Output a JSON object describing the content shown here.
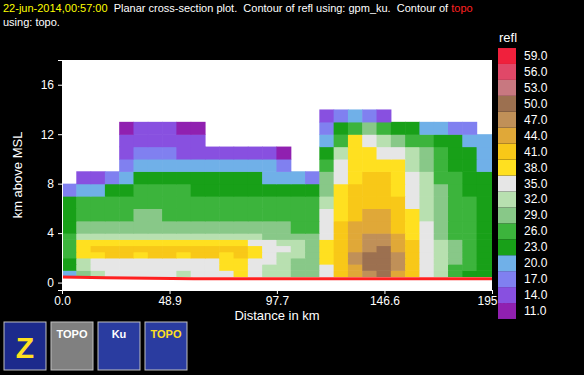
{
  "title_lines": [
    [
      {
        "text": "22-jun-2014,00:57:00",
        "color": "#ffff00"
      },
      {
        "text": "  Planar cross-section plot.  Contour of refl using: gpm_ku.  Contour of ",
        "color": "#ffffff"
      },
      {
        "text": "topo",
        "color": "#ff2020"
      }
    ],
    [
      {
        "text": "using: topo.",
        "color": "#ffffff"
      }
    ]
  ],
  "chart_data": {
    "type": "heatmap",
    "x_label": "Distance in km",
    "y_label": "km above MSL",
    "xlim": [
      0,
      195.5
    ],
    "ylim": [
      -0.6,
      18
    ],
    "xticks": [
      {
        "value": 0,
        "label": "0.0"
      },
      48.9,
      97.7,
      146.6,
      195.5
    ],
    "yticks": [
      0,
      4,
      8,
      12,
      16
    ],
    "x_edges": [
      0,
      6.5,
      13,
      19.5,
      26,
      32.5,
      39,
      45.5,
      52,
      58.5,
      65,
      71.5,
      78,
      84.5,
      91,
      97.5,
      104,
      110.5,
      117,
      123.5,
      130,
      136.5,
      143,
      149.5,
      156,
      162.5,
      169,
      175.5,
      182,
      188.5,
      195.5
    ],
    "y_edges": [
      0.5,
      1,
      1.5,
      2,
      2.5,
      3,
      3.5,
      4,
      5,
      6,
      7,
      8,
      9,
      10,
      11,
      12,
      13,
      14
    ],
    "cells": [
      [
        21,
        30,
        34,
        36,
        36,
        36,
        36,
        36,
        34,
        36,
        36,
        37,
        38,
        36,
        34,
        33,
        31,
        29,
        36,
        42,
        45,
        49,
        50,
        46,
        42,
        37,
        32,
        28,
        24,
        24
      ],
      [
        24,
        32,
        35,
        36,
        36,
        37,
        36,
        36,
        35,
        36,
        37,
        38,
        39,
        36,
        34,
        33,
        31,
        29,
        37,
        43,
        46,
        50,
        51,
        47,
        42,
        37,
        32,
        28,
        26,
        25
      ],
      [
        25,
        33,
        36,
        37,
        36,
        37,
        37,
        36,
        36,
        36,
        37,
        38,
        39,
        36,
        35,
        33,
        31,
        29,
        38,
        43,
        47,
        50,
        51,
        47,
        42,
        37,
        32,
        29,
        26,
        25
      ],
      [
        27,
        39,
        40,
        41,
        42,
        40,
        41,
        42,
        40,
        41,
        42,
        40,
        41,
        39,
        37,
        34,
        32,
        30,
        38,
        43,
        47,
        50,
        50,
        47,
        42,
        37,
        32,
        29,
        27,
        25
      ],
      [
        28,
        40,
        41,
        43,
        42,
        41,
        42,
        43,
        41,
        42,
        42,
        41,
        42,
        39,
        37,
        35,
        33,
        30,
        38,
        42,
        46,
        49,
        50,
        46,
        41,
        37,
        32,
        29,
        27,
        25
      ],
      [
        27,
        38,
        39,
        40,
        40,
        39,
        40,
        40,
        39,
        40,
        39,
        39,
        39,
        37,
        36,
        34,
        32,
        30,
        38,
        42,
        45,
        48,
        48,
        45,
        41,
        36,
        32,
        29,
        27,
        25
      ],
      [
        26,
        33,
        34,
        34,
        34,
        33,
        34,
        34,
        33,
        34,
        33,
        33,
        33,
        32,
        31,
        31,
        30,
        29,
        37,
        42,
        45,
        47,
        47,
        44,
        40,
        36,
        31,
        28,
        27,
        25
      ],
      [
        25,
        30,
        31,
        31,
        30,
        31,
        31,
        30,
        30,
        31,
        30,
        30,
        30,
        29,
        29,
        29,
        28,
        28,
        36,
        41,
        44,
        45,
        45,
        43,
        39,
        35,
        31,
        28,
        27,
        25
      ],
      [
        24,
        28,
        28,
        28,
        28,
        29,
        29,
        28,
        28,
        28,
        28,
        27,
        27,
        27,
        27,
        27,
        27,
        27,
        35,
        40,
        43,
        44,
        44,
        42,
        38,
        34,
        30,
        28,
        26,
        25
      ],
      [
        23,
        26,
        27,
        27,
        27,
        27,
        27,
        27,
        27,
        27,
        26,
        26,
        26,
        26,
        26,
        26,
        26,
        26,
        33,
        39,
        42,
        43,
        43,
        41,
        37,
        33,
        30,
        27,
        26,
        24
      ],
      [
        18,
        20,
        22,
        24,
        25,
        26,
        26,
        26,
        26,
        25,
        25,
        25,
        25,
        25,
        25,
        24,
        24,
        24,
        31,
        38,
        41,
        42,
        42,
        40,
        36,
        33,
        29,
        27,
        25,
        24
      ],
      [
        null,
        15,
        16,
        18,
        22,
        24,
        24,
        24,
        24,
        23,
        23,
        23,
        23,
        23,
        22,
        22,
        20,
        18,
        29,
        37,
        40,
        41,
        41,
        39,
        35,
        32,
        28,
        26,
        24,
        23
      ],
      [
        null,
        null,
        null,
        null,
        19,
        21,
        21,
        21,
        21,
        20,
        20,
        20,
        21,
        21,
        20,
        19,
        null,
        null,
        27,
        35,
        39,
        40,
        40,
        38,
        34,
        31,
        28,
        25,
        24,
        22
      ],
      [
        null,
        null,
        null,
        null,
        16,
        17,
        17,
        17,
        16,
        16,
        16,
        15,
        15,
        15,
        14,
        13,
        null,
        null,
        24,
        33,
        38,
        38,
        37,
        35,
        32,
        30,
        27,
        25,
        23,
        22
      ],
      [
        null,
        null,
        null,
        null,
        15,
        15,
        16,
        16,
        15,
        14,
        null,
        null,
        null,
        null,
        null,
        null,
        null,
        null,
        20,
        28,
        38,
        37,
        34,
        31,
        28,
        27,
        25,
        23,
        22,
        20
      ],
      [
        null,
        null,
        null,
        null,
        13,
        14,
        14,
        14,
        13,
        12,
        null,
        null,
        null,
        null,
        null,
        null,
        null,
        null,
        17,
        24,
        28,
        29,
        27,
        25,
        23,
        22,
        20,
        19,
        17,
        null
      ],
      [
        null,
        null,
        null,
        null,
        null,
        null,
        null,
        null,
        null,
        null,
        null,
        null,
        null,
        null,
        null,
        null,
        null,
        null,
        14,
        18,
        20,
        18,
        15,
        null,
        null,
        null,
        null,
        null,
        null,
        null
      ]
    ],
    "colorbar": {
      "title": "refl",
      "ticks": [
        {
          "value": 11,
          "label": "11.0"
        },
        {
          "value": 14,
          "label": "14.0"
        },
        {
          "value": 17,
          "label": "17.0"
        },
        {
          "value": 20,
          "label": "20.0"
        },
        {
          "value": 23,
          "label": "23.0"
        },
        {
          "value": 26,
          "label": "26.0"
        },
        {
          "value": 29,
          "label": "29.0"
        },
        {
          "value": 32,
          "label": "32.0"
        },
        {
          "value": 35,
          "label": "35.0"
        },
        {
          "value": 38,
          "label": "38.0"
        },
        {
          "value": 41,
          "label": "41.0"
        },
        {
          "value": 44,
          "label": "44.0"
        },
        {
          "value": 47,
          "label": "47.0"
        },
        {
          "value": 50,
          "label": "50.0"
        },
        {
          "value": 53,
          "label": "53.0"
        },
        {
          "value": 56,
          "label": "56.0"
        },
        {
          "value": 59,
          "label": "59.0"
        }
      ],
      "colors": [
        "#9020b0",
        "#8850e0",
        "#8080f0",
        "#70b0e8",
        "#18a018",
        "#3cb43c",
        "#88c888",
        "#b8e0b0",
        "#e6e6e6",
        "#ffe020",
        "#f8c818",
        "#e0a838",
        "#c09058",
        "#9c7050",
        "#c87880",
        "#e04868",
        "#f0203c"
      ]
    },
    "topo": {
      "color": "#ff2020",
      "x": [
        0,
        20,
        40,
        60,
        80,
        100,
        120,
        140,
        160,
        180,
        195.5
      ],
      "values": [
        0.45,
        0.4,
        0.35,
        0.3,
        0.3,
        0.3,
        0.3,
        0.3,
        0.3,
        0.3,
        0.3
      ]
    }
  },
  "toolbar": [
    {
      "label": "Z"
    },
    {
      "label": "TOPO"
    },
    {
      "label": "Ku"
    },
    {
      "label": "TOPO"
    }
  ]
}
